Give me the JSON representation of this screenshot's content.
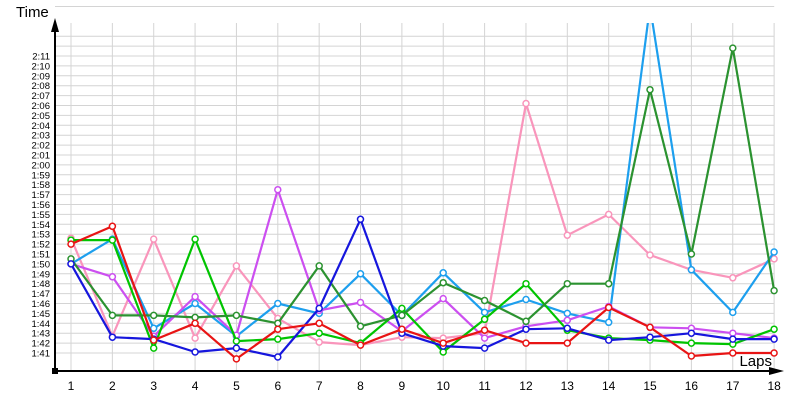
{
  "chart_data": {
    "type": "line",
    "title": "",
    "xlabel": "Laps",
    "ylabel": "Time",
    "x": [
      1,
      2,
      3,
      4,
      5,
      6,
      7,
      8,
      9,
      10,
      11,
      12,
      13,
      14,
      15,
      16,
      17,
      18
    ],
    "x_tick_labels": [
      "1",
      "2",
      "3",
      "4",
      "5",
      "6",
      "7",
      "8",
      "9",
      "10",
      "11",
      "12",
      "13",
      "14",
      "15",
      "16",
      "17",
      "18"
    ],
    "y_tick_labels": [
      "1:41",
      "1:42",
      "1:43",
      "1:44",
      "1:45",
      "1:46",
      "1:47",
      "1:48",
      "1:49",
      "1:50",
      "1:51",
      "1:52",
      "1:53",
      "1:54",
      "1:55",
      "1:56",
      "1:57",
      "1:58",
      "1:59",
      "2:00",
      "2:01",
      "2:02",
      "2:03",
      "2:04",
      "2:05",
      "2:06",
      "2:07",
      "2:08",
      "2:09",
      "2:10",
      "2:11"
    ],
    "y_tick_seconds": [
      101,
      102,
      103,
      104,
      105,
      106,
      107,
      108,
      109,
      110,
      111,
      112,
      113,
      114,
      115,
      116,
      117,
      118,
      119,
      120,
      121,
      122,
      123,
      124,
      125,
      126,
      127,
      128,
      129,
      130,
      131
    ],
    "y_axis_range_seconds": [
      101,
      131
    ],
    "grid": true,
    "legend_position": "none",
    "note_units": "values are lap times in seconds (101 s = 1:41)",
    "series": [
      {
        "name": "pink",
        "color": "#f995bb",
        "values": [
          112.6,
          102.7,
          112.5,
          102.5,
          109.8,
          104.5,
          102.1,
          101.8,
          102.6,
          102.5,
          103.0,
          126.2,
          112.9,
          115.0,
          110.9,
          109.4,
          108.6,
          110.5
        ]
      },
      {
        "name": "cyan",
        "color": "#1d9fee",
        "values": [
          110.0,
          112.5,
          103.5,
          106.0,
          102.7,
          106.0,
          105.0,
          109.0,
          104.8,
          109.1,
          105.1,
          106.4,
          105.0,
          104.1,
          136.0,
          109.4,
          105.1,
          111.2
        ]
      },
      {
        "name": "magenta",
        "color": "#cc4ff0",
        "values": [
          110.0,
          108.7,
          102.7,
          106.7,
          102.8,
          117.5,
          105.3,
          106.1,
          103.2,
          106.5,
          102.5,
          103.7,
          104.3,
          105.7,
          103.6,
          103.5,
          103.0,
          102.5
        ]
      },
      {
        "name": "green",
        "color": "#00c400",
        "values": [
          112.4,
          112.4,
          101.5,
          112.5,
          102.2,
          102.4,
          103.0,
          102.0,
          105.5,
          101.1,
          104.4,
          108.0,
          103.3,
          102.5,
          102.3,
          102.0,
          101.9,
          103.4
        ]
      },
      {
        "name": "dark-green",
        "color": "#2b9230",
        "values": [
          110.5,
          104.8,
          104.8,
          104.6,
          104.8,
          104.0,
          109.8,
          103.7,
          104.8,
          108.1,
          106.3,
          104.2,
          108.0,
          108.0,
          127.6,
          111.0,
          131.8,
          107.3
        ]
      },
      {
        "name": "blue",
        "color": "#1616dd",
        "values": [
          110.0,
          102.6,
          102.4,
          101.1,
          101.5,
          100.6,
          105.5,
          114.5,
          103.0,
          101.7,
          101.5,
          103.4,
          103.5,
          102.3,
          102.6,
          103.0,
          102.4,
          102.4
        ]
      },
      {
        "name": "red",
        "color": "#e81414",
        "values": [
          112.0,
          113.8,
          102.3,
          104.0,
          100.4,
          103.4,
          104.0,
          101.8,
          103.4,
          102.0,
          103.3,
          102.0,
          102.0,
          105.6,
          103.6,
          100.7,
          101.0,
          101.0
        ]
      }
    ]
  },
  "layout_colors": {
    "grid": "#d4d4d4",
    "axis": "#000000",
    "background": "#ffffff",
    "label": "#000000"
  }
}
